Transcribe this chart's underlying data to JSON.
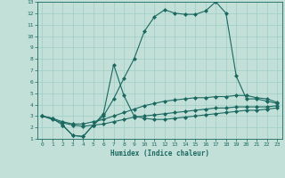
{
  "background_color": "#c2e0d8",
  "grid_color": "#9eccc4",
  "line_color": "#1a6860",
  "xlabel": "Humidex (Indice chaleur)",
  "xlim": [
    -0.5,
    23.5
  ],
  "ylim": [
    1,
    13
  ],
  "xticks": [
    0,
    1,
    2,
    3,
    4,
    5,
    6,
    7,
    8,
    9,
    10,
    11,
    12,
    13,
    14,
    15,
    16,
    17,
    18,
    19,
    20,
    21,
    22,
    23
  ],
  "yticks": [
    1,
    2,
    3,
    4,
    5,
    6,
    7,
    8,
    9,
    10,
    11,
    12,
    13
  ],
  "series": [
    {
      "x": [
        0,
        1,
        2,
        3,
        4,
        5,
        6,
        7,
        8,
        9,
        10,
        11,
        12,
        13,
        14,
        15,
        16,
        17,
        18,
        19,
        20,
        21,
        22,
        23
      ],
      "y": [
        3.0,
        2.8,
        2.2,
        1.3,
        1.2,
        2.2,
        3.0,
        4.5,
        6.3,
        8.0,
        10.4,
        11.7,
        12.3,
        12.0,
        11.9,
        11.9,
        12.2,
        13.0,
        12.0,
        6.5,
        4.5,
        4.5,
        4.3,
        4.1
      ]
    },
    {
      "x": [
        2,
        3,
        4,
        5,
        6,
        7,
        8,
        9,
        10,
        11,
        12,
        13,
        14,
        15,
        16,
        17,
        18,
        19,
        20,
        21,
        22,
        23
      ],
      "y": [
        2.2,
        1.3,
        1.2,
        2.2,
        3.2,
        7.5,
        4.8,
        3.0,
        2.8,
        2.7,
        2.7,
        2.8,
        2.9,
        3.0,
        3.1,
        3.2,
        3.3,
        3.4,
        3.5,
        3.5,
        3.6,
        3.7
      ]
    },
    {
      "x": [
        0,
        1,
        2,
        3,
        4,
        5,
        6,
        7,
        8,
        9,
        10,
        11,
        12,
        13,
        14,
        15,
        16,
        17,
        18,
        19,
        20,
        21,
        22,
        23
      ],
      "y": [
        3.0,
        2.8,
        2.5,
        2.3,
        2.3,
        2.5,
        2.7,
        3.0,
        3.3,
        3.6,
        3.9,
        4.1,
        4.3,
        4.4,
        4.5,
        4.6,
        4.6,
        4.7,
        4.7,
        4.8,
        4.8,
        4.6,
        4.5,
        4.2
      ]
    },
    {
      "x": [
        0,
        1,
        2,
        3,
        4,
        5,
        6,
        7,
        8,
        9,
        10,
        11,
        12,
        13,
        14,
        15,
        16,
        17,
        18,
        19,
        20,
        21,
        22,
        23
      ],
      "y": [
        3.0,
        2.7,
        2.4,
        2.2,
        2.1,
        2.2,
        2.3,
        2.5,
        2.7,
        2.9,
        3.0,
        3.1,
        3.2,
        3.3,
        3.4,
        3.5,
        3.6,
        3.7,
        3.7,
        3.8,
        3.8,
        3.8,
        3.8,
        3.9
      ]
    }
  ],
  "marker": "D",
  "marker_size": 2.0,
  "linewidth": 0.8
}
